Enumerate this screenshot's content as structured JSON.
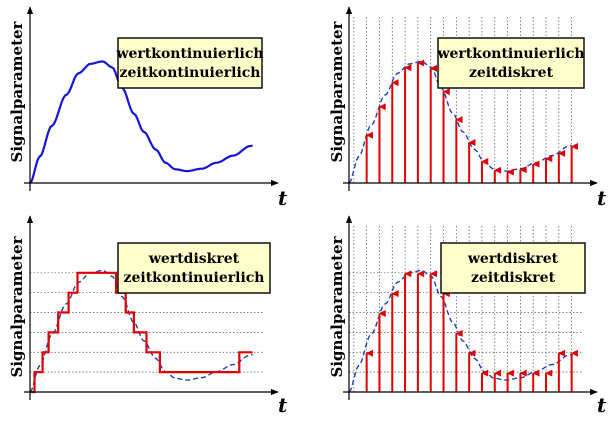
{
  "colors": {
    "curve": "#1515d8",
    "dashed": "#1f3fbf",
    "samples": "#dd0000",
    "box_fill": "#ffffcc",
    "grid": "#555555",
    "axis": "#000000"
  },
  "panels": [
    {
      "key": "tl",
      "ylabel": "Signalparameter",
      "xlabel": "t",
      "box_line1": "wertkontinuierlich",
      "box_line2": "zeitkontinuierlich",
      "value_continuous": true,
      "time_continuous": true
    },
    {
      "key": "tr",
      "ylabel": "Signalparameter",
      "xlabel": "t",
      "box_line1": "wertkontinuierlich",
      "box_line2": "zeitdiskret",
      "value_continuous": true,
      "time_continuous": false
    },
    {
      "key": "bl",
      "ylabel": "Signalparameter",
      "xlabel": "t",
      "box_line1": "wertdiskret",
      "box_line2": "zeitkontinuierlich",
      "value_continuous": false,
      "time_continuous": true
    },
    {
      "key": "br",
      "ylabel": "Signalparameter",
      "xlabel": "t",
      "box_line1": "wertdiskret",
      "box_line2": "zeitdiskret",
      "value_continuous": false,
      "time_continuous": false
    }
  ]
}
